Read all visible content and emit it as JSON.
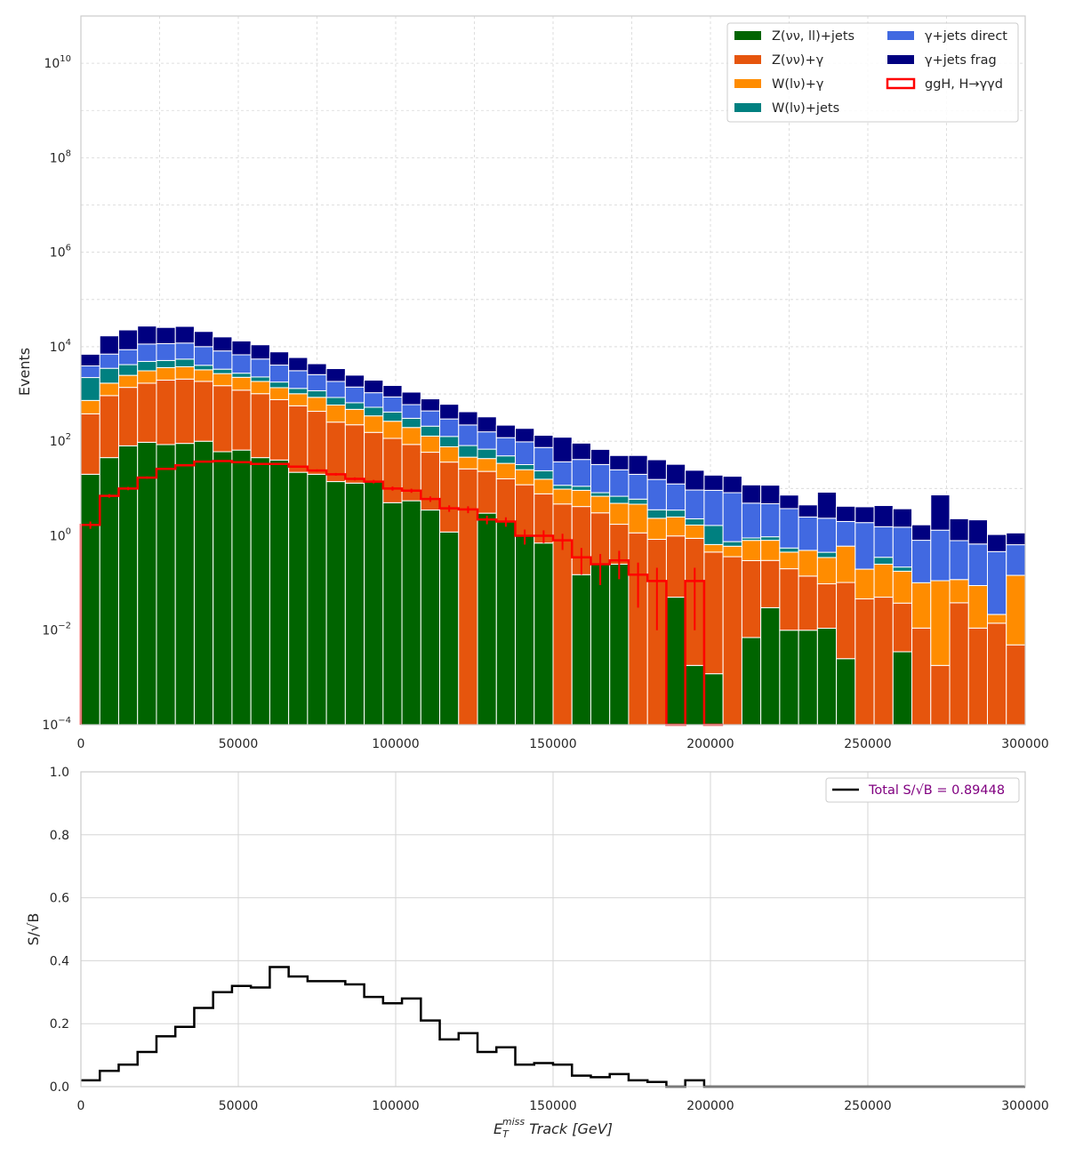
{
  "chart_data": [
    {
      "type": "bar",
      "stacked": true,
      "yscale": "log",
      "ylabel": "Events",
      "xlim": [
        0,
        300000
      ],
      "ylim": [
        0.0001,
        100000000000
      ],
      "bin_width": 6000,
      "grid": true,
      "legend_position": "top-right",
      "x_ticks": [
        "0",
        "50000",
        "100000",
        "150000",
        "200000",
        "250000",
        "300000"
      ],
      "y_ticks": [
        {
          "base": "10",
          "exp": "−4",
          "value": 0.0001
        },
        {
          "base": "10",
          "exp": "−2",
          "value": 0.01
        },
        {
          "base": "10",
          "exp": "0",
          "value": 1
        },
        {
          "base": "10",
          "exp": "2",
          "value": 100
        },
        {
          "base": "10",
          "exp": "4",
          "value": 10000
        },
        {
          "base": "10",
          "exp": "6",
          "value": 1000000
        },
        {
          "base": "10",
          "exp": "8",
          "value": 100000000
        },
        {
          "base": "10",
          "exp": "10",
          "value": 10000000000
        }
      ],
      "bin_centers": [
        3000,
        9000,
        15000,
        21000,
        27000,
        33000,
        39000,
        45000,
        51000,
        57000,
        63000,
        69000,
        75000,
        81000,
        87000,
        93000,
        99000,
        105000,
        111000,
        117000,
        123000,
        129000,
        135000,
        141000,
        147000,
        153000,
        159000,
        165000,
        171000,
        177000,
        183000,
        189000,
        195000,
        201000,
        207000,
        213000,
        219000,
        225000,
        231000,
        237000,
        243000,
        249000,
        255000,
        261000,
        267000,
        273000,
        279000,
        285000,
        291000,
        297000
      ],
      "series": [
        {
          "name": "Z(νν, ll)+jets",
          "color": "#006400",
          "values": [
            20,
            45,
            80,
            95,
            85,
            90,
            100,
            60,
            65,
            45,
            40,
            22,
            20,
            14,
            13,
            14,
            5,
            5.5,
            3.5,
            1.2,
            0.0001,
            3,
            2,
            1,
            0.7,
            0.0001,
            0.15,
            0.25,
            0.25,
            0.0001,
            0.0001,
            0.05,
            0.0018,
            0.0012,
            0.0001,
            0.007,
            0.03,
            0.01,
            0.01,
            0.011,
            0.0025,
            0.0001,
            0.0001,
            0.0035,
            0.0001,
            0.0001,
            0.0001,
            0.0001,
            0.0001,
            0.0001
          ]
        },
        {
          "name": "Z(νν)+γ",
          "color": "#e6550d",
          "values": [
            360,
            880,
            1300,
            1600,
            1880,
            1980,
            1750,
            1440,
            1140,
            970,
            720,
            540,
            410,
            240,
            210,
            140,
            110,
            80,
            55,
            35,
            26,
            20,
            14,
            11,
            7,
            4.7,
            4,
            2.8,
            1.5,
            1.15,
            0.84,
            0.94,
            0.88,
            0.45,
            0.36,
            0.29,
            0.27,
            0.19,
            0.13,
            0.085,
            0.1,
            0.046,
            0.05,
            0.034,
            0.011,
            0.0017,
            0.038,
            0.011,
            0.014,
            0.0048
          ]
        },
        {
          "name": "W(lν)+γ",
          "color": "#ff8c00",
          "values": [
            350,
            770,
            1100,
            1400,
            1650,
            1700,
            1400,
            1200,
            1050,
            830,
            600,
            450,
            420,
            330,
            250,
            190,
            150,
            110,
            70,
            40,
            20,
            20,
            18,
            13,
            8,
            5,
            5,
            3.8,
            3.1,
            3.5,
            1.5,
            1.5,
            0.8,
            0.2,
            0.24,
            0.5,
            0.5,
            0.25,
            0.35,
            0.25,
            0.5,
            0.15,
            0.2,
            0.14,
            0.09,
            0.11,
            0.08,
            0.077,
            0.0074,
            0.14
          ]
        },
        {
          "name": "W(lν)+jets",
          "color": "#008080",
          "values": [
            1500,
            1800,
            1700,
            1800,
            1500,
            1700,
            800,
            650,
            500,
            450,
            430,
            300,
            320,
            260,
            180,
            180,
            150,
            110,
            80,
            50,
            35,
            25,
            15,
            7,
            8,
            2,
            2,
            1.3,
            2,
            1.3,
            1.2,
            1,
            0.6,
            1,
            0.15,
            0.1,
            0.15,
            0.1,
            0.0001,
            0.1,
            0.0001,
            0.0001,
            0.1,
            0.04,
            0.0001,
            0.0001,
            0.0001,
            0.0001,
            0.0001,
            0.0001
          ]
        },
        {
          "name": "γ+jets direct",
          "color": "#4169e1",
          "values": [
            1700,
            3500,
            4500,
            6500,
            6500,
            6500,
            6000,
            4800,
            4000,
            3200,
            2300,
            1800,
            1400,
            1000,
            750,
            540,
            450,
            290,
            230,
            170,
            140,
            90,
            70,
            65,
            50,
            25,
            30,
            24,
            18,
            14,
            12,
            9,
            7,
            7.5,
            7.4,
            4,
            3.8,
            3.2,
            2,
            1.9,
            1.4,
            1.7,
            1.2,
            1.3,
            0.7,
            1.2,
            0.67,
            0.58,
            0.44,
            0.5
          ]
        },
        {
          "name": "γ+jets frag",
          "color": "#000080",
          "values": [
            3000,
            10000,
            14000,
            16000,
            14000,
            15000,
            11000,
            8000,
            6500,
            5500,
            3700,
            2800,
            1800,
            1600,
            1100,
            900,
            650,
            500,
            350,
            310,
            200,
            170,
            100,
            90,
            60,
            85,
            50,
            35,
            25,
            30,
            25,
            20,
            15,
            10,
            10,
            7,
            7,
            3.5,
            2,
            6,
            2.2,
            2.2,
            2.8,
            2.2,
            0.9,
            6,
            1.5,
            1.5,
            0.6,
            0.5
          ]
        },
        {
          "name": "ggH, H→γγd",
          "color": "#ff0000",
          "style": "step",
          "values": [
            1.7,
            7,
            10,
            17,
            26,
            31,
            37,
            38,
            36,
            33,
            33,
            29,
            24,
            20,
            16,
            14,
            10,
            9,
            6,
            3.8,
            3.6,
            2.2,
            2,
            1,
            1,
            0.8,
            0.35,
            0.25,
            0.3,
            0.15,
            0.11,
            0,
            0.11,
            0
          ],
          "errors": [
            0.3,
            0.6,
            0.8,
            1,
            1.2,
            1.4,
            1.5,
            1.6,
            1.6,
            1.6,
            1.6,
            1.5,
            1.4,
            1.3,
            1.2,
            1.2,
            1,
            0.9,
            0.8,
            0.6,
            0.6,
            0.45,
            0.45,
            0.35,
            0.3,
            0.3,
            0.2,
            0.16,
            0.18,
            0.12,
            0.1,
            0,
            0.1,
            0
          ]
        }
      ]
    },
    {
      "type": "line",
      "style": "step",
      "xlabel": "E_T^miss Track [GeV]",
      "ylabel": "S/√B",
      "xlim": [
        0,
        300000
      ],
      "ylim": [
        0,
        1
      ],
      "grid": true,
      "legend_position": "top-right",
      "x_ticks": [
        "0",
        "50000",
        "100000",
        "150000",
        "200000",
        "250000",
        "300000"
      ],
      "y_ticks": [
        "0.0",
        "0.2",
        "0.4",
        "0.6",
        "0.8",
        "1.0"
      ],
      "series": [
        {
          "name": "Total S/√B = 0.89448",
          "color": "#000000",
          "x": [
            3000,
            9000,
            15000,
            21000,
            27000,
            33000,
            39000,
            45000,
            51000,
            57000,
            63000,
            69000,
            75000,
            81000,
            87000,
            93000,
            99000,
            105000,
            111000,
            117000,
            123000,
            129000,
            135000,
            141000,
            147000,
            153000,
            159000,
            165000,
            171000,
            177000,
            183000,
            189000,
            195000,
            201000,
            207000,
            213000,
            219000,
            225000,
            231000,
            237000,
            243000,
            249000,
            255000,
            261000,
            267000,
            273000,
            279000,
            285000,
            291000,
            297000
          ],
          "values": [
            0.02,
            0.05,
            0.07,
            0.11,
            0.16,
            0.19,
            0.25,
            0.3,
            0.32,
            0.315,
            0.38,
            0.35,
            0.335,
            0.335,
            0.325,
            0.285,
            0.265,
            0.28,
            0.21,
            0.15,
            0.17,
            0.11,
            0.125,
            0.07,
            0.075,
            0.07,
            0.035,
            0.03,
            0.04,
            0.02,
            0.015,
            0,
            0.02,
            0,
            0,
            0,
            0,
            0,
            0,
            0,
            0,
            0,
            0,
            0,
            0,
            0,
            0,
            0,
            0,
            0
          ]
        }
      ]
    }
  ],
  "legend_text_color": "#800080",
  "xlabel_parts": {
    "base": "E",
    "sub": "T",
    "sup": "miss",
    "rest": " Track [GeV]"
  }
}
